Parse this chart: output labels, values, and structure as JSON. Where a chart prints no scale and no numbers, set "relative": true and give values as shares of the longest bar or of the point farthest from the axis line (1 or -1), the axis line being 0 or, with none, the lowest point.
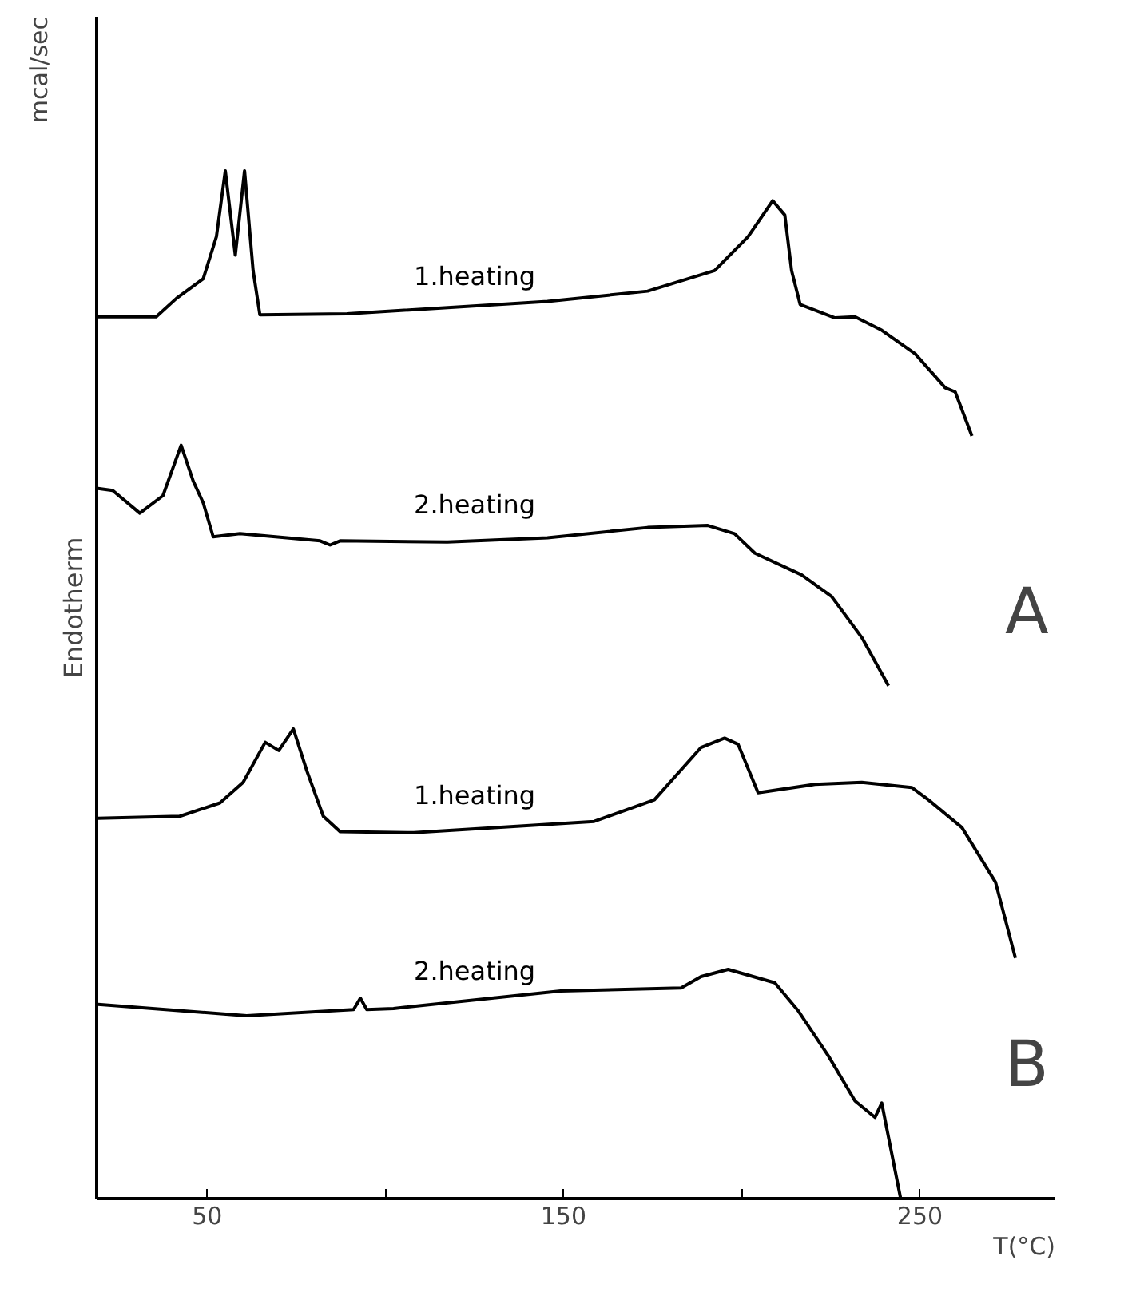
{
  "chart_data": {
    "type": "line",
    "relative": true,
    "xlabel": "T(°C)",
    "ylabel": "Endotherm",
    "annotations": [
      "mcal/sec",
      "A",
      "B"
    ],
    "xlim": [
      19,
      288
    ],
    "xticks": [
      50,
      {
        "value": 100,
        "label": null
      },
      150,
      {
        "value": 200,
        "label": null
      },
      250
    ],
    "tick_labels": "x",
    "grid": false,
    "legend": false,
    "marker": "none",
    "line_style": "solid",
    "series": [
      {
        "name": "1.heating",
        "color": "#000000",
        "x": [
          19.4,
          35.7,
          41.4,
          48.9,
          52.6,
          55.1,
          57.9,
          60.5,
          62.9,
          64.8,
          89.2,
          145.5,
          173.6,
          192.4,
          201.8,
          208.7,
          212.1,
          214.0,
          216.4,
          226.2,
          231.8,
          239.3,
          248.7,
          257.1,
          259.9,
          264.6
        ],
        "values": [
          0.858,
          0.858,
          0.876,
          0.895,
          0.936,
          1.0,
          0.918,
          1.0,
          0.903,
          0.86,
          0.861,
          0.873,
          0.883,
          0.903,
          0.936,
          0.971,
          0.957,
          0.903,
          0.87,
          0.857,
          0.858,
          0.845,
          0.822,
          0.789,
          0.785,
          0.742
        ]
      },
      {
        "name": "2.heating",
        "color": "#000000",
        "x": [
          19.4,
          23.5,
          31.1,
          37.6,
          42.7,
          46.1,
          48.9,
          51.7,
          59.2,
          81.7,
          84.5,
          87.3,
          117.4,
          145.5,
          173.6,
          190.5,
          198.0,
          203.7,
          216.8,
          225.2,
          233.7,
          241.2
        ],
        "values": [
          0.691,
          0.689,
          0.667,
          0.684,
          0.733,
          0.698,
          0.677,
          0.644,
          0.647,
          0.64,
          0.636,
          0.64,
          0.639,
          0.643,
          0.653,
          0.655,
          0.647,
          0.628,
          0.607,
          0.586,
          0.546,
          0.499
        ]
      },
      {
        "name": "1.heating",
        "color": "#000000",
        "x": [
          19.4,
          42.3,
          53.6,
          60.1,
          66.3,
          70.1,
          74.2,
          78.0,
          82.6,
          87.3,
          108.0,
          158.6,
          175.5,
          188.6,
          195.2,
          199.0,
          204.6,
          220.5,
          233.7,
          247.7,
          252.4,
          261.8,
          271.2,
          276.8
        ],
        "values": [
          0.37,
          0.372,
          0.385,
          0.405,
          0.444,
          0.436,
          0.457,
          0.416,
          0.372,
          0.357,
          0.356,
          0.367,
          0.388,
          0.439,
          0.448,
          0.442,
          0.395,
          0.403,
          0.405,
          0.4,
          0.388,
          0.361,
          0.308,
          0.234
        ]
      },
      {
        "name": "2.heating",
        "color": "#000000",
        "x": [
          19.4,
          61.1,
          91.1,
          93.0,
          94.8,
          102.3,
          149.2,
          183.0,
          188.6,
          196.2,
          209.3,
          215.8,
          224.3,
          231.8,
          237.4,
          239.3,
          240.2,
          244.6
        ],
        "values": [
          0.189,
          0.178,
          0.184,
          0.195,
          0.184,
          0.185,
          0.202,
          0.205,
          0.216,
          0.223,
          0.21,
          0.183,
          0.139,
          0.095,
          0.079,
          0.093,
          0.077,
          0.0
        ]
      }
    ]
  }
}
